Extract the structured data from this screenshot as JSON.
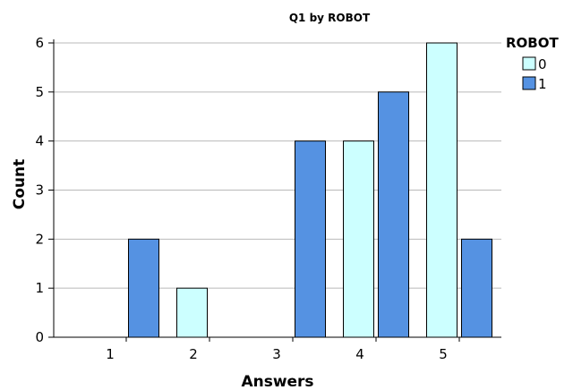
{
  "chart_data": {
    "type": "bar",
    "title": "Q1 by ROBOT",
    "xlabel": "Answers",
    "ylabel": "Count",
    "categories": [
      "1",
      "2",
      "3",
      "4",
      "5"
    ],
    "ylim": [
      0,
      6
    ],
    "yticks": [
      "0",
      "1",
      "2",
      "3",
      "4",
      "5",
      "6"
    ],
    "grid": true,
    "legend": {
      "title": "ROBOT",
      "position": "right"
    },
    "series": [
      {
        "name": "0",
        "color": "#ccffff",
        "values": [
          0,
          1,
          0,
          4,
          6
        ]
      },
      {
        "name": "1",
        "color": "#5592e2",
        "values": [
          2,
          0,
          4,
          5,
          2
        ]
      }
    ]
  }
}
